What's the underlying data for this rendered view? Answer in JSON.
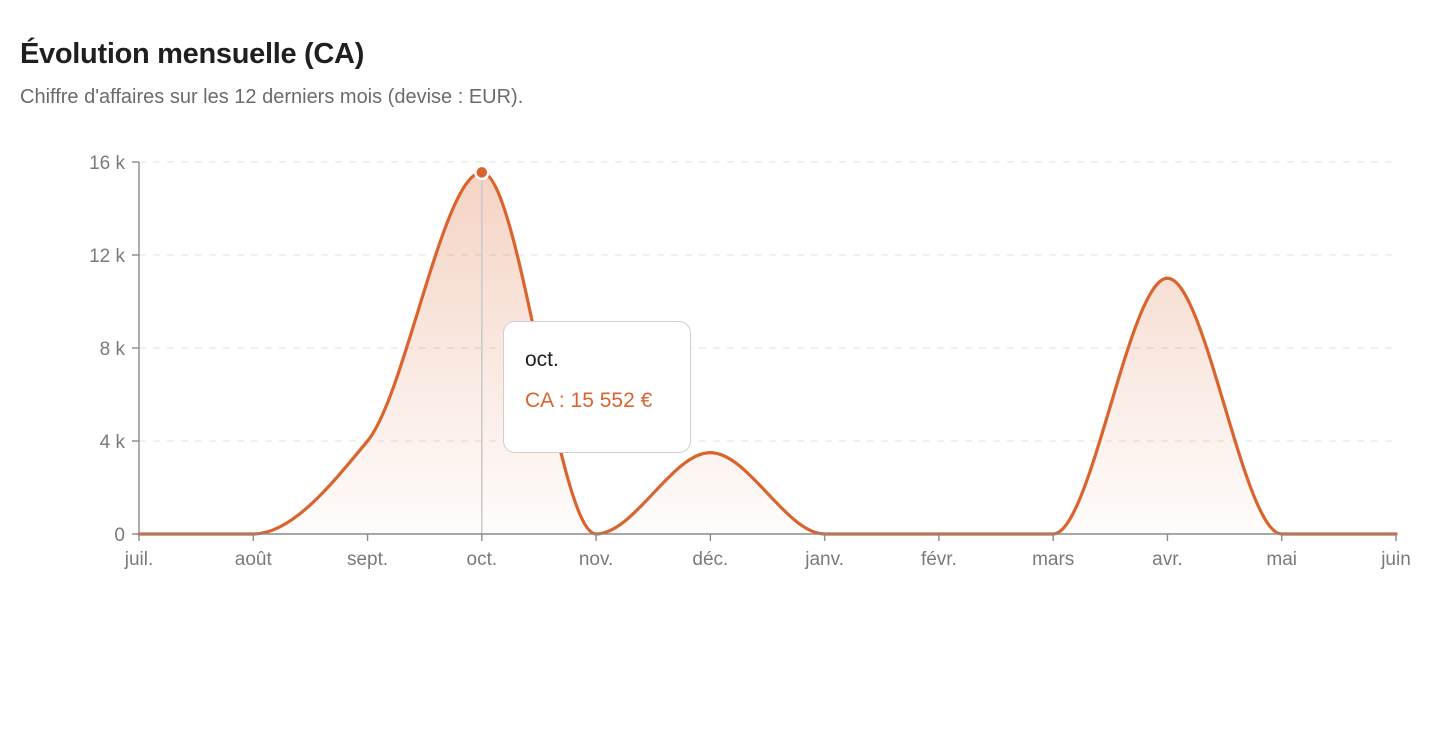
{
  "header": {
    "title": "Évolution mensuelle (CA)",
    "subtitle": "Chiffre d'affaires sur les 12 derniers mois (devise : EUR)."
  },
  "colors": {
    "line": "#d9642e",
    "grid": "#e6e6e6",
    "axis": "#8a8a8a"
  },
  "chart_data": {
    "type": "area",
    "title": "Évolution mensuelle (CA)",
    "subtitle": "Chiffre d'affaires sur les 12 derniers mois (devise : EUR).",
    "categories": [
      "juil.",
      "août",
      "sept.",
      "oct.",
      "nov.",
      "déc.",
      "janv.",
      "févr.",
      "mars",
      "avr.",
      "mai",
      "juin"
    ],
    "series": [
      {
        "values": [
          0,
          0,
          4000,
          15552,
          0,
          3500,
          0,
          0,
          0,
          11000,
          0,
          0
        ]
      }
    ],
    "ylim": [
      0,
      16000
    ],
    "yticks": [
      0,
      4000,
      8000,
      12000,
      16000
    ],
    "ytick_labels": [
      "0",
      "4 k",
      "8 k",
      "12 k",
      "16 k"
    ],
    "grid": true,
    "xlabel": "",
    "ylabel": ""
  },
  "tooltip": {
    "label": "oct.",
    "value_text": "CA : 15 552 €",
    "active_index": 3
  }
}
